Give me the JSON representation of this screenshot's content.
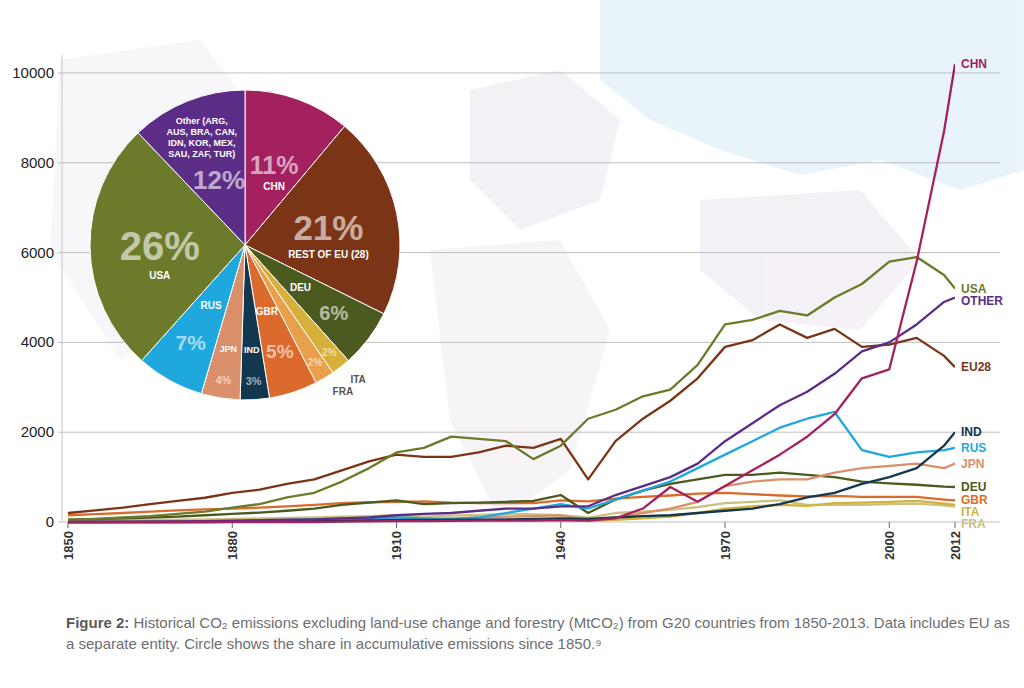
{
  "chart_data": [
    {
      "type": "line",
      "x": [
        1850,
        1855,
        1860,
        1865,
        1870,
        1875,
        1880,
        1885,
        1890,
        1895,
        1900,
        1905,
        1910,
        1915,
        1920,
        1925,
        1930,
        1935,
        1940,
        1945,
        1950,
        1955,
        1960,
        1965,
        1970,
        1975,
        1980,
        1985,
        1990,
        1995,
        2000,
        2005,
        2010,
        2012
      ],
      "series": [
        {
          "name": "CHN",
          "color": "#a3215e",
          "values": [
            0,
            0,
            0,
            0,
            0,
            0,
            0,
            0,
            0,
            0,
            10,
            15,
            20,
            20,
            25,
            30,
            30,
            30,
            40,
            30,
            80,
            300,
            780,
            450,
            800,
            1150,
            1500,
            1900,
            2400,
            3200,
            3400,
            5800,
            8700,
            10200
          ]
        },
        {
          "name": "USA",
          "color": "#6c7b2b",
          "values": [
            50,
            70,
            100,
            130,
            180,
            230,
            320,
            400,
            550,
            650,
            900,
            1200,
            1550,
            1650,
            1900,
            1850,
            1800,
            1400,
            1700,
            2300,
            2500,
            2800,
            2950,
            3500,
            4400,
            4500,
            4700,
            4600,
            5000,
            5300,
            5800,
            5900,
            5500,
            5200
          ]
        },
        {
          "name": "OTHER",
          "color": "#5c2d87",
          "values": [
            0,
            0,
            5,
            10,
            15,
            20,
            30,
            40,
            50,
            60,
            80,
            100,
            150,
            180,
            200,
            250,
            300,
            300,
            350,
            350,
            600,
            800,
            1000,
            1300,
            1800,
            2200,
            2600,
            2900,
            3300,
            3800,
            4000,
            4400,
            4900,
            5000
          ]
        },
        {
          "name": "EU28",
          "color": "#7b3516",
          "values": [
            200,
            260,
            320,
            400,
            470,
            540,
            650,
            720,
            850,
            950,
            1150,
            1350,
            1500,
            1450,
            1450,
            1550,
            1700,
            1650,
            1850,
            950,
            1800,
            2300,
            2700,
            3200,
            3900,
            4050,
            4400,
            4100,
            4300,
            3900,
            3950,
            4100,
            3700,
            3450
          ]
        },
        {
          "name": "IND",
          "color": "#12384f",
          "values": [
            0,
            0,
            0,
            0,
            0,
            0,
            5,
            10,
            15,
            20,
            30,
            35,
            40,
            45,
            50,
            55,
            60,
            70,
            80,
            70,
            100,
            130,
            150,
            200,
            250,
            300,
            400,
            550,
            650,
            850,
            1000,
            1200,
            1700,
            2000
          ]
        },
        {
          "name": "RUS",
          "color": "#1fa8dd",
          "values": [
            0,
            0,
            0,
            0,
            5,
            10,
            20,
            30,
            40,
            60,
            80,
            90,
            100,
            80,
            60,
            100,
            200,
            300,
            400,
            300,
            500,
            700,
            900,
            1200,
            1500,
            1800,
            2100,
            2300,
            2450,
            1600,
            1450,
            1550,
            1600,
            1650
          ]
        },
        {
          "name": "JPN",
          "color": "#d9906a",
          "values": [
            0,
            0,
            0,
            0,
            0,
            0,
            5,
            10,
            15,
            20,
            30,
            40,
            60,
            70,
            80,
            100,
            120,
            130,
            150,
            40,
            100,
            200,
            300,
            450,
            800,
            900,
            950,
            950,
            1100,
            1200,
            1250,
            1300,
            1200,
            1300
          ]
        },
        {
          "name": "DEU",
          "color": "#4b5a1f",
          "values": [
            50,
            65,
            80,
            100,
            120,
            150,
            180,
            210,
            250,
            300,
            380,
            430,
            480,
            400,
            420,
            430,
            450,
            470,
            600,
            200,
            500,
            700,
            850,
            950,
            1050,
            1050,
            1100,
            1050,
            1000,
            900,
            860,
            830,
            790,
            780
          ]
        },
        {
          "name": "GBR",
          "color": "#dc6a2c",
          "values": [
            150,
            175,
            200,
            230,
            260,
            280,
            300,
            320,
            350,
            380,
            420,
            440,
            450,
            460,
            430,
            420,
            420,
            420,
            480,
            460,
            520,
            560,
            590,
            630,
            650,
            620,
            590,
            570,
            580,
            560,
            560,
            560,
            500,
            480
          ]
        },
        {
          "name": "ITA",
          "color": "#d6b03a",
          "values": [
            0,
            0,
            0,
            0,
            0,
            5,
            5,
            10,
            10,
            15,
            20,
            25,
            25,
            25,
            30,
            35,
            40,
            45,
            50,
            20,
            50,
            80,
            120,
            200,
            300,
            350,
            380,
            360,
            420,
            430,
            450,
            470,
            410,
            380
          ]
        },
        {
          "name": "FRA",
          "color": "#c9c27e",
          "values": [
            30,
            35,
            40,
            45,
            50,
            60,
            70,
            80,
            90,
            100,
            120,
            130,
            150,
            120,
            140,
            160,
            180,
            170,
            150,
            100,
            200,
            230,
            270,
            330,
            420,
            450,
            480,
            380,
            380,
            380,
            400,
            410,
            370,
            340
          ]
        }
      ],
      "xlim": [
        1850,
        2012
      ],
      "xticks": [
        1850,
        1880,
        1910,
        1940,
        1970,
        2000,
        2012
      ],
      "ylim": [
        0,
        10400
      ],
      "yticks": [
        0,
        2000,
        4000,
        6000,
        8000,
        10000
      ],
      "grid": true
    },
    {
      "type": "pie",
      "categories": [
        "CHN",
        "REST OF EU (28)",
        "DEU",
        "ITA",
        "FRA",
        "GBR",
        "IND",
        "JPN",
        "RUS",
        "USA",
        "Other (ARG, AUS, BRA, CAN, IDN, KOR, MEX, SAU, ZAF, TUR)"
      ],
      "values": [
        11,
        21,
        6,
        2,
        2,
        5,
        3,
        4,
        7,
        26,
        12
      ],
      "value_labels": [
        "11%",
        "21%",
        "6%",
        "2%",
        "2%",
        "5%",
        "3%",
        "4%",
        "7%",
        "26%",
        "12%"
      ],
      "colors": [
        "#a3215e",
        "#7b3516",
        "#4b5a1f",
        "#d6b03a",
        "#e8a04a",
        "#dc6a2c",
        "#12384f",
        "#d9906a",
        "#1fa8dd",
        "#6c7b2b",
        "#5c2d87"
      ],
      "data_labels": true
    }
  ],
  "caption": {
    "label": "Figure 2:",
    "text": "Historical CO₂ emissions excluding land-use change and forestry (MtCO₂) from G20 countries from 1850-2013. Data includes EU as a separate entity. Circle shows the share in accumulative emissions since 1850.⁹"
  }
}
